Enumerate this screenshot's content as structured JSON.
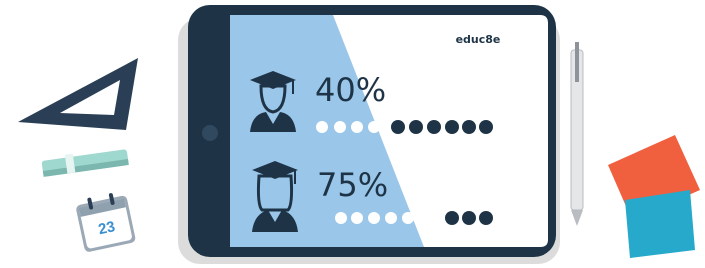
{
  "brand": "educ8e",
  "stats": [
    {
      "label": "40%"
    },
    {
      "label": "75%"
    }
  ],
  "calendar_day": "23"
}
